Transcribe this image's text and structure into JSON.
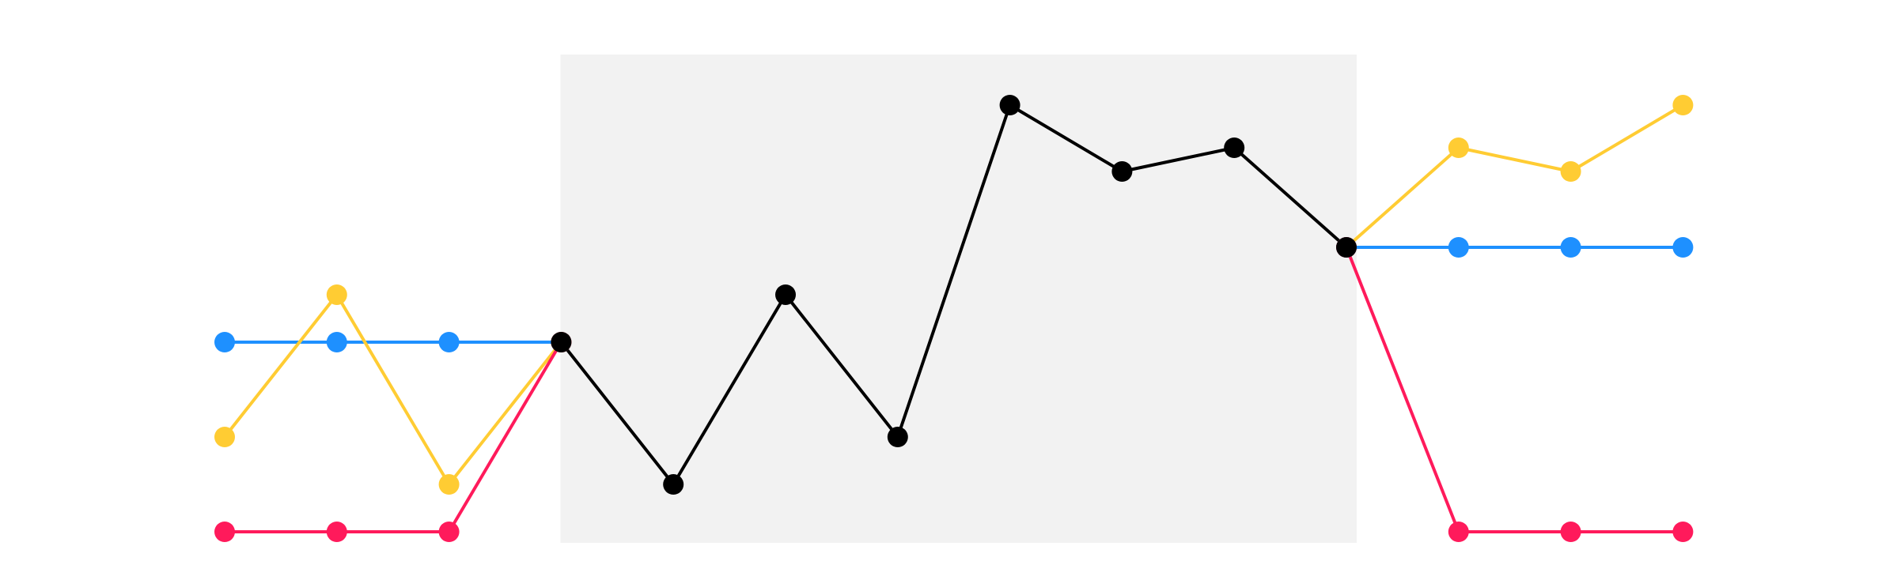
{
  "chart_data": {
    "type": "line",
    "title": "",
    "xlabel": "",
    "ylabel": "",
    "grid": false,
    "legend": "none",
    "x": [
      0,
      1,
      2,
      3,
      4,
      5,
      6,
      7,
      8,
      9,
      10,
      11,
      12,
      13
    ],
    "ylim": [
      0,
      10
    ],
    "highlight_region": {
      "x_start": 3,
      "x_end": 10,
      "color": "#f2f2f2"
    },
    "series": [
      {
        "color": "#1e90ff",
        "points": [
          [
            0,
            4.0
          ],
          [
            1,
            4.0
          ],
          [
            2,
            4.0
          ],
          [
            3,
            4.0
          ]
        ]
      },
      {
        "color": "#ffcc33",
        "points": [
          [
            0,
            2.0
          ],
          [
            1,
            5.0
          ],
          [
            2,
            1.0
          ],
          [
            3,
            4.0
          ]
        ]
      },
      {
        "color": "#ff1a5b",
        "points": [
          [
            0,
            0.0
          ],
          [
            1,
            0.0
          ],
          [
            2,
            0.0
          ],
          [
            3,
            4.0
          ]
        ]
      },
      {
        "color": "#000000",
        "points": [
          [
            3,
            4.0
          ],
          [
            4,
            1.0
          ],
          [
            5,
            5.0
          ],
          [
            6,
            2.0
          ],
          [
            7,
            9.0
          ],
          [
            8,
            7.6
          ],
          [
            9,
            8.1
          ],
          [
            10,
            6.0
          ]
        ]
      },
      {
        "color": "#ffcc33",
        "points": [
          [
            10,
            6.0
          ],
          [
            11,
            8.1
          ],
          [
            12,
            7.6
          ],
          [
            13,
            9.0
          ]
        ]
      },
      {
        "color": "#1e90ff",
        "points": [
          [
            10,
            6.0
          ],
          [
            11,
            6.0
          ],
          [
            12,
            6.0
          ],
          [
            13,
            6.0
          ]
        ]
      },
      {
        "color": "#ff1a5b",
        "points": [
          [
            10,
            6.0
          ],
          [
            11,
            0.0
          ],
          [
            12,
            0.0
          ],
          [
            13,
            0.0
          ]
        ]
      }
    ]
  }
}
